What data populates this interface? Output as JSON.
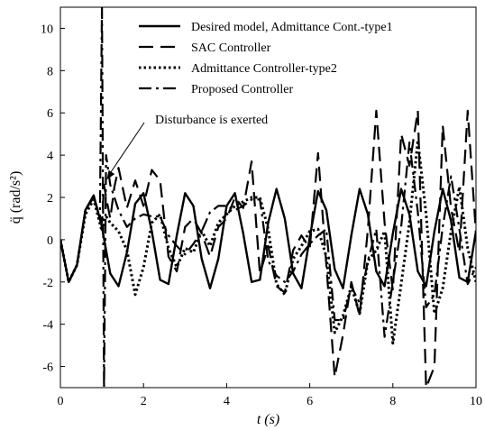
{
  "chart_data": {
    "type": "line",
    "xlabel": "t (s)",
    "ylabel": "q̈ (rad/s²)",
    "xlim": [
      0,
      10
    ],
    "ylim": [
      -7,
      11
    ],
    "xticks": [
      0,
      2,
      4,
      6,
      8,
      10
    ],
    "yticks": [
      -6,
      -4,
      -2,
      0,
      2,
      4,
      6,
      8,
      10
    ],
    "grid": false,
    "legend_position": "top-right",
    "annotation": {
      "text": "Disturbance is exerted",
      "x": 1.05,
      "y": 2.8
    },
    "series": [
      {
        "name": "Desired model, Admittance Cont.-type1",
        "style": "solid",
        "x": [
          0,
          0.2,
          0.4,
          0.6,
          0.8,
          1.0,
          1.2,
          1.4,
          1.6,
          1.8,
          2.0,
          2.2,
          2.4,
          2.6,
          2.8,
          3.0,
          3.2,
          3.4,
          3.6,
          3.8,
          4.0,
          4.2,
          4.4,
          4.6,
          4.8,
          5.0,
          5.2,
          5.4,
          5.6,
          5.8,
          6.0,
          6.2,
          6.4,
          6.6,
          6.8,
          7.0,
          7.2,
          7.4,
          7.6,
          7.8,
          8.0,
          8.2,
          8.4,
          8.6,
          8.8,
          9.0,
          9.2,
          9.4,
          9.6,
          9.8,
          10.0
        ],
        "y": [
          0,
          -2.0,
          -1.2,
          1.4,
          2.1,
          0.6,
          -1.6,
          -2.2,
          -0.6,
          1.7,
          2.2,
          0.4,
          -1.9,
          -2.1,
          0.2,
          2.2,
          1.6,
          -0.9,
          -2.3,
          -0.9,
          1.6,
          2.2,
          0.3,
          -2.0,
          -1.9,
          0.8,
          2.4,
          1.0,
          -1.6,
          -2.3,
          0.1,
          2.3,
          1.4,
          -1.4,
          -2.3,
          0.2,
          2.4,
          1.2,
          -1.5,
          -2.2,
          0.3,
          2.4,
          1.2,
          -1.5,
          -2.2,
          0.4,
          2.4,
          0.9,
          -1.8,
          -2.0,
          0.4
        ]
      },
      {
        "name": "SAC Controller",
        "style": "dashed",
        "x": [
          0,
          0.2,
          0.4,
          0.6,
          0.8,
          1.0,
          1.05,
          1.1,
          1.2,
          1.3,
          1.4,
          1.6,
          1.8,
          2.0,
          2.2,
          2.4,
          2.6,
          2.8,
          3.0,
          3.2,
          3.4,
          3.6,
          3.8,
          4.0,
          4.2,
          4.4,
          4.6,
          4.8,
          5.0,
          5.2,
          5.4,
          5.6,
          5.8,
          6.0,
          6.2,
          6.4,
          6.6,
          6.8,
          7.0,
          7.2,
          7.4,
          7.6,
          7.8,
          8.0,
          8.2,
          8.4,
          8.6,
          8.8,
          9.0,
          9.2,
          9.4,
          9.6,
          9.8,
          10.0
        ],
        "y": [
          0,
          -2.0,
          -1.2,
          1.4,
          2.0,
          0.8,
          2.6,
          2.0,
          1.0,
          2.5,
          3.4,
          1.5,
          2.8,
          1.6,
          3.3,
          2.8,
          -0.8,
          -1.5,
          0.6,
          1.0,
          0.3,
          -0.8,
          0.6,
          1.0,
          2.0,
          1.5,
          3.7,
          -1.6,
          -0.3,
          -2.2,
          -2.5,
          -0.5,
          0.2,
          -0.4,
          4.1,
          -1.2,
          -6.5,
          -4.5,
          -2.0,
          -3.6,
          0.5,
          6.1,
          0.8,
          -2.4,
          5.0,
          3.5,
          6.1,
          -7.0,
          -6.0,
          5.4,
          1.5,
          -0.6,
          6.1,
          0.3
        ]
      },
      {
        "name": "Admittance Controller-type2",
        "style": "dotted",
        "x": [
          0,
          0.2,
          0.4,
          0.6,
          0.8,
          1.0,
          1.1,
          1.2,
          1.4,
          1.6,
          1.8,
          2.0,
          2.2,
          2.4,
          2.6,
          2.8,
          3.0,
          3.2,
          3.4,
          3.6,
          3.8,
          4.0,
          4.2,
          4.4,
          4.6,
          4.8,
          5.0,
          5.2,
          5.4,
          5.6,
          5.8,
          6.0,
          6.2,
          6.4,
          6.6,
          6.8,
          7.0,
          7.2,
          7.4,
          7.6,
          7.8,
          8.0,
          8.2,
          8.4,
          8.6,
          8.8,
          9.0,
          9.2,
          9.4,
          9.6,
          9.8,
          10.0
        ],
        "y": [
          0,
          -2.0,
          -1.2,
          1.2,
          1.9,
          0.4,
          1.1,
          0.8,
          0.4,
          -0.5,
          -2.6,
          -1.3,
          0.8,
          1.2,
          -0.4,
          -1.3,
          -0.4,
          -0.6,
          0.4,
          -0.3,
          0.8,
          1.2,
          1.6,
          1.8,
          2.0,
          2.0,
          0.5,
          -2.1,
          -2.6,
          -0.9,
          -0.3,
          0.4,
          0.5,
          -0.8,
          -4.4,
          -3.6,
          -2.2,
          -3.5,
          -1.0,
          -0.5,
          0.4,
          -4.9,
          -2.1,
          0.8,
          4.7,
          1.2,
          -3.5,
          -2.3,
          0.4,
          2.5,
          -0.4,
          -2.0
        ]
      },
      {
        "name": "Proposed Controller",
        "style": "dashdot",
        "x": [
          0,
          0.2,
          0.4,
          0.6,
          0.8,
          0.95,
          1.0,
          1.05,
          1.1,
          1.2,
          1.4,
          1.6,
          1.8,
          2.0,
          2.2,
          2.4,
          2.6,
          2.8,
          3.0,
          3.2,
          3.4,
          3.6,
          3.8,
          4.0,
          4.2,
          4.4,
          4.6,
          4.8,
          5.0,
          5.2,
          5.4,
          5.6,
          5.8,
          6.0,
          6.2,
          6.4,
          6.6,
          6.8,
          7.0,
          7.2,
          7.4,
          7.6,
          7.8,
          8.0,
          8.2,
          8.4,
          8.6,
          8.8,
          9.0,
          9.2,
          9.4,
          9.6,
          9.8,
          10.0
        ],
        "y": [
          0,
          -2.0,
          -1.2,
          1.4,
          2.0,
          1.0,
          11,
          -7,
          4,
          2.6,
          1.4,
          0.6,
          1.0,
          1.2,
          1.1,
          1.1,
          0.2,
          -0.3,
          -0.7,
          -0.2,
          0.4,
          1.3,
          1.6,
          1.6,
          1.4,
          1.6,
          1.9,
          1.9,
          -1.0,
          -1.7,
          -2.0,
          -1.5,
          -0.7,
          -0.2,
          0.2,
          0.5,
          -3.8,
          -3.8,
          -2.2,
          -3.0,
          -1.0,
          0.5,
          -4.6,
          -2.0,
          0.6,
          4.6,
          1.3,
          -3.2,
          -2.6,
          0.6,
          3.0,
          0.5,
          -2.1,
          -1.3
        ]
      }
    ]
  }
}
